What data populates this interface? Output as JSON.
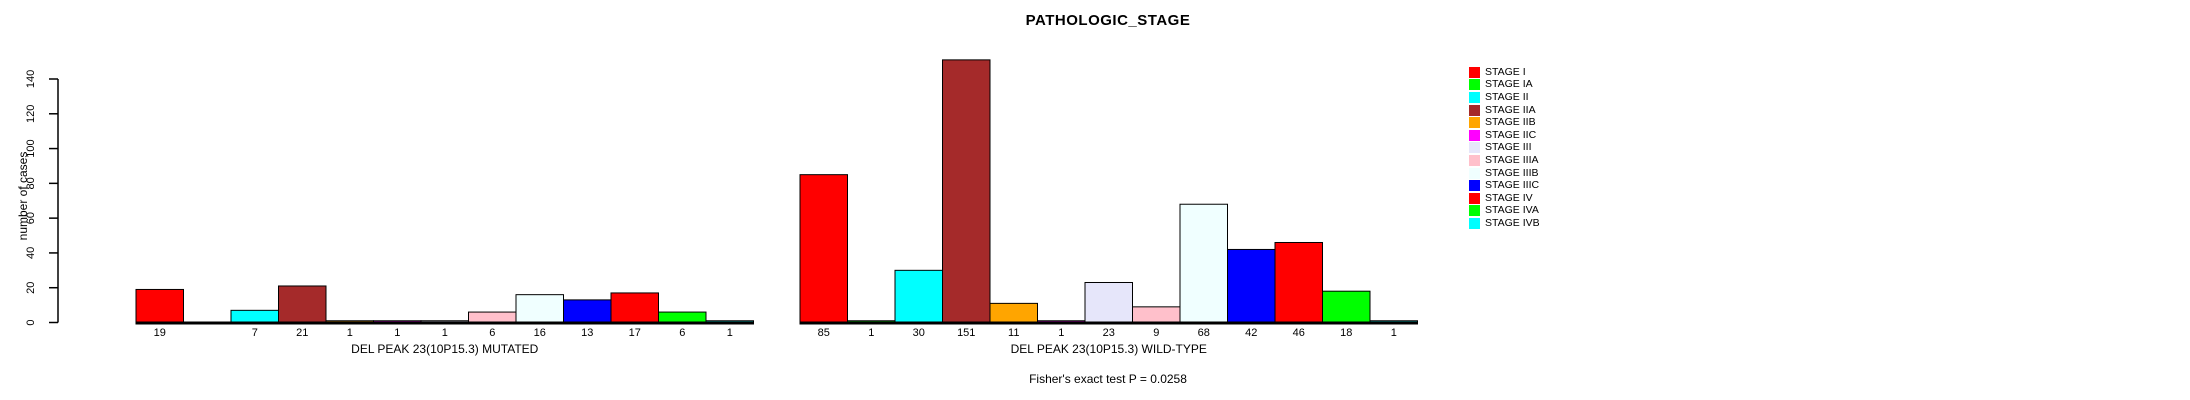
{
  "title": "PATHOLOGIC_STAGE",
  "chart_data": {
    "type": "bar",
    "title": "PATHOLOGIC_STAGE",
    "xlabel": "",
    "ylabel": "number of cases",
    "ylim": [
      0,
      151
    ],
    "yticks": [
      0,
      20,
      40,
      60,
      80,
      100,
      120,
      140
    ],
    "grid": false,
    "legend_position": "right",
    "categories": [
      "STAGE I",
      "STAGE IA",
      "STAGE II",
      "STAGE IIA",
      "STAGE IIB",
      "STAGE IIC",
      "STAGE III",
      "STAGE IIIA",
      "STAGE IIIB",
      "STAGE IIIC",
      "STAGE IV",
      "STAGE IVA",
      "STAGE IVB"
    ],
    "colors": [
      "#FF0000",
      "#00FF00",
      "#00FFFF",
      "#A52A2A",
      "#FFA500",
      "#FF00FF",
      "#E6E6FA",
      "#FFC0CB",
      "#F0FFFF",
      "#0000FF",
      "#FF0000",
      "#00FF00",
      "#00FFFF"
    ],
    "groups": [
      {
        "label": "DEL PEAK 23(10P15.3) MUTATED",
        "values": [
          19,
          0,
          7,
          21,
          1,
          1,
          1,
          6,
          16,
          13,
          17,
          6,
          1
        ]
      },
      {
        "label": "DEL PEAK 23(10P15.3) WILD-TYPE",
        "values": [
          85,
          1,
          30,
          151,
          11,
          1,
          23,
          9,
          68,
          42,
          46,
          18,
          1
        ]
      }
    ],
    "annotation": "Fisher's exact test P = 0.0258"
  }
}
